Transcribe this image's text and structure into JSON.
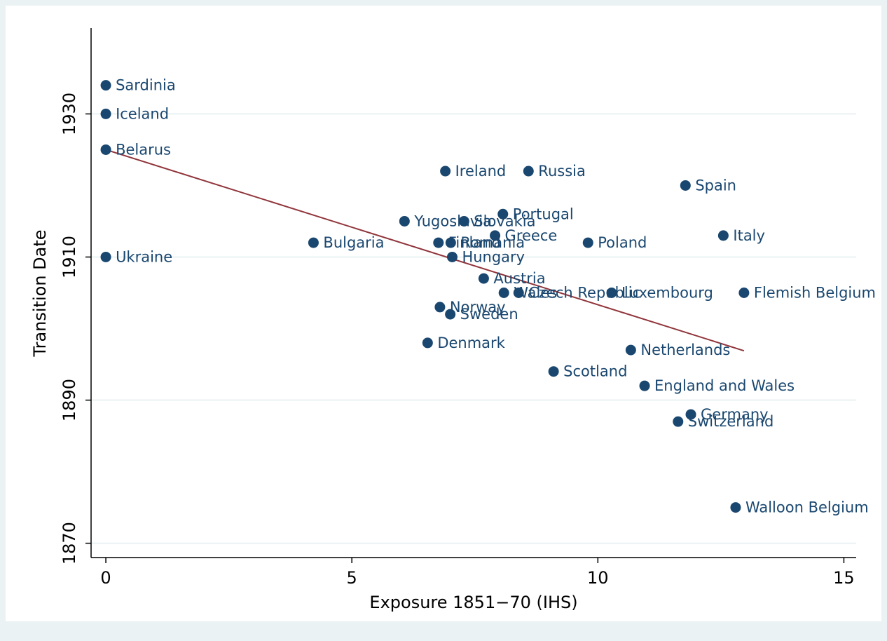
{
  "chart_data": {
    "type": "scatter",
    "x_label": "Exposure 1851−70 (IHS)",
    "y_label": "Transition Date",
    "color": "#1a476f",
    "fit_color": "#90353b",
    "grid": true,
    "xlim": [
      -0.3,
      15.25
    ],
    "ylim": [
      1868,
      1942
    ],
    "xticks": [
      0,
      5,
      10,
      15
    ],
    "yticks": [
      1870,
      1890,
      1910,
      1930
    ],
    "labels": [
      "Sardinia",
      "Iceland",
      "Belarus",
      "Ireland",
      "Russia",
      "Spain",
      "Portugal",
      "Yugoslavia",
      "Slovakia",
      "Greece",
      "Italy",
      "Bulgaria",
      "Finland",
      "Romania",
      "Poland",
      "Ukraine",
      "Hungary",
      "Austria",
      "Wales",
      "Czech Republic",
      "Luxembourg",
      "Flemish Belgium",
      "Norway",
      "Sweden",
      "Denmark",
      "Netherlands",
      "Scotland",
      "England and Wales",
      "Germany",
      "Switzerland",
      "Walloon Belgium"
    ],
    "x": [
      0,
      0,
      0,
      6.9,
      8.59,
      11.78,
      8.07,
      6.07,
      7.28,
      7.91,
      12.55,
      4.22,
      6.76,
      7.01,
      9.8,
      0,
      7.04,
      7.68,
      8.09,
      8.39,
      10.28,
      12.97,
      6.79,
      7.0,
      6.54,
      10.67,
      9.1,
      10.95,
      11.89,
      11.63,
      12.8
    ],
    "values": [
      1934,
      1930,
      1925,
      1922,
      1922,
      1920,
      1916,
      1915,
      1915,
      1913,
      1913,
      1912,
      1912,
      1912,
      1912,
      1910,
      1910,
      1907,
      1905,
      1905,
      1905,
      1905,
      1903,
      1902,
      1898,
      1897,
      1894,
      1892,
      1888,
      1887,
      1875
    ],
    "fit_line": {
      "x": [
        0,
        12.97
      ],
      "values": [
        1925,
        1896.9
      ]
    }
  }
}
